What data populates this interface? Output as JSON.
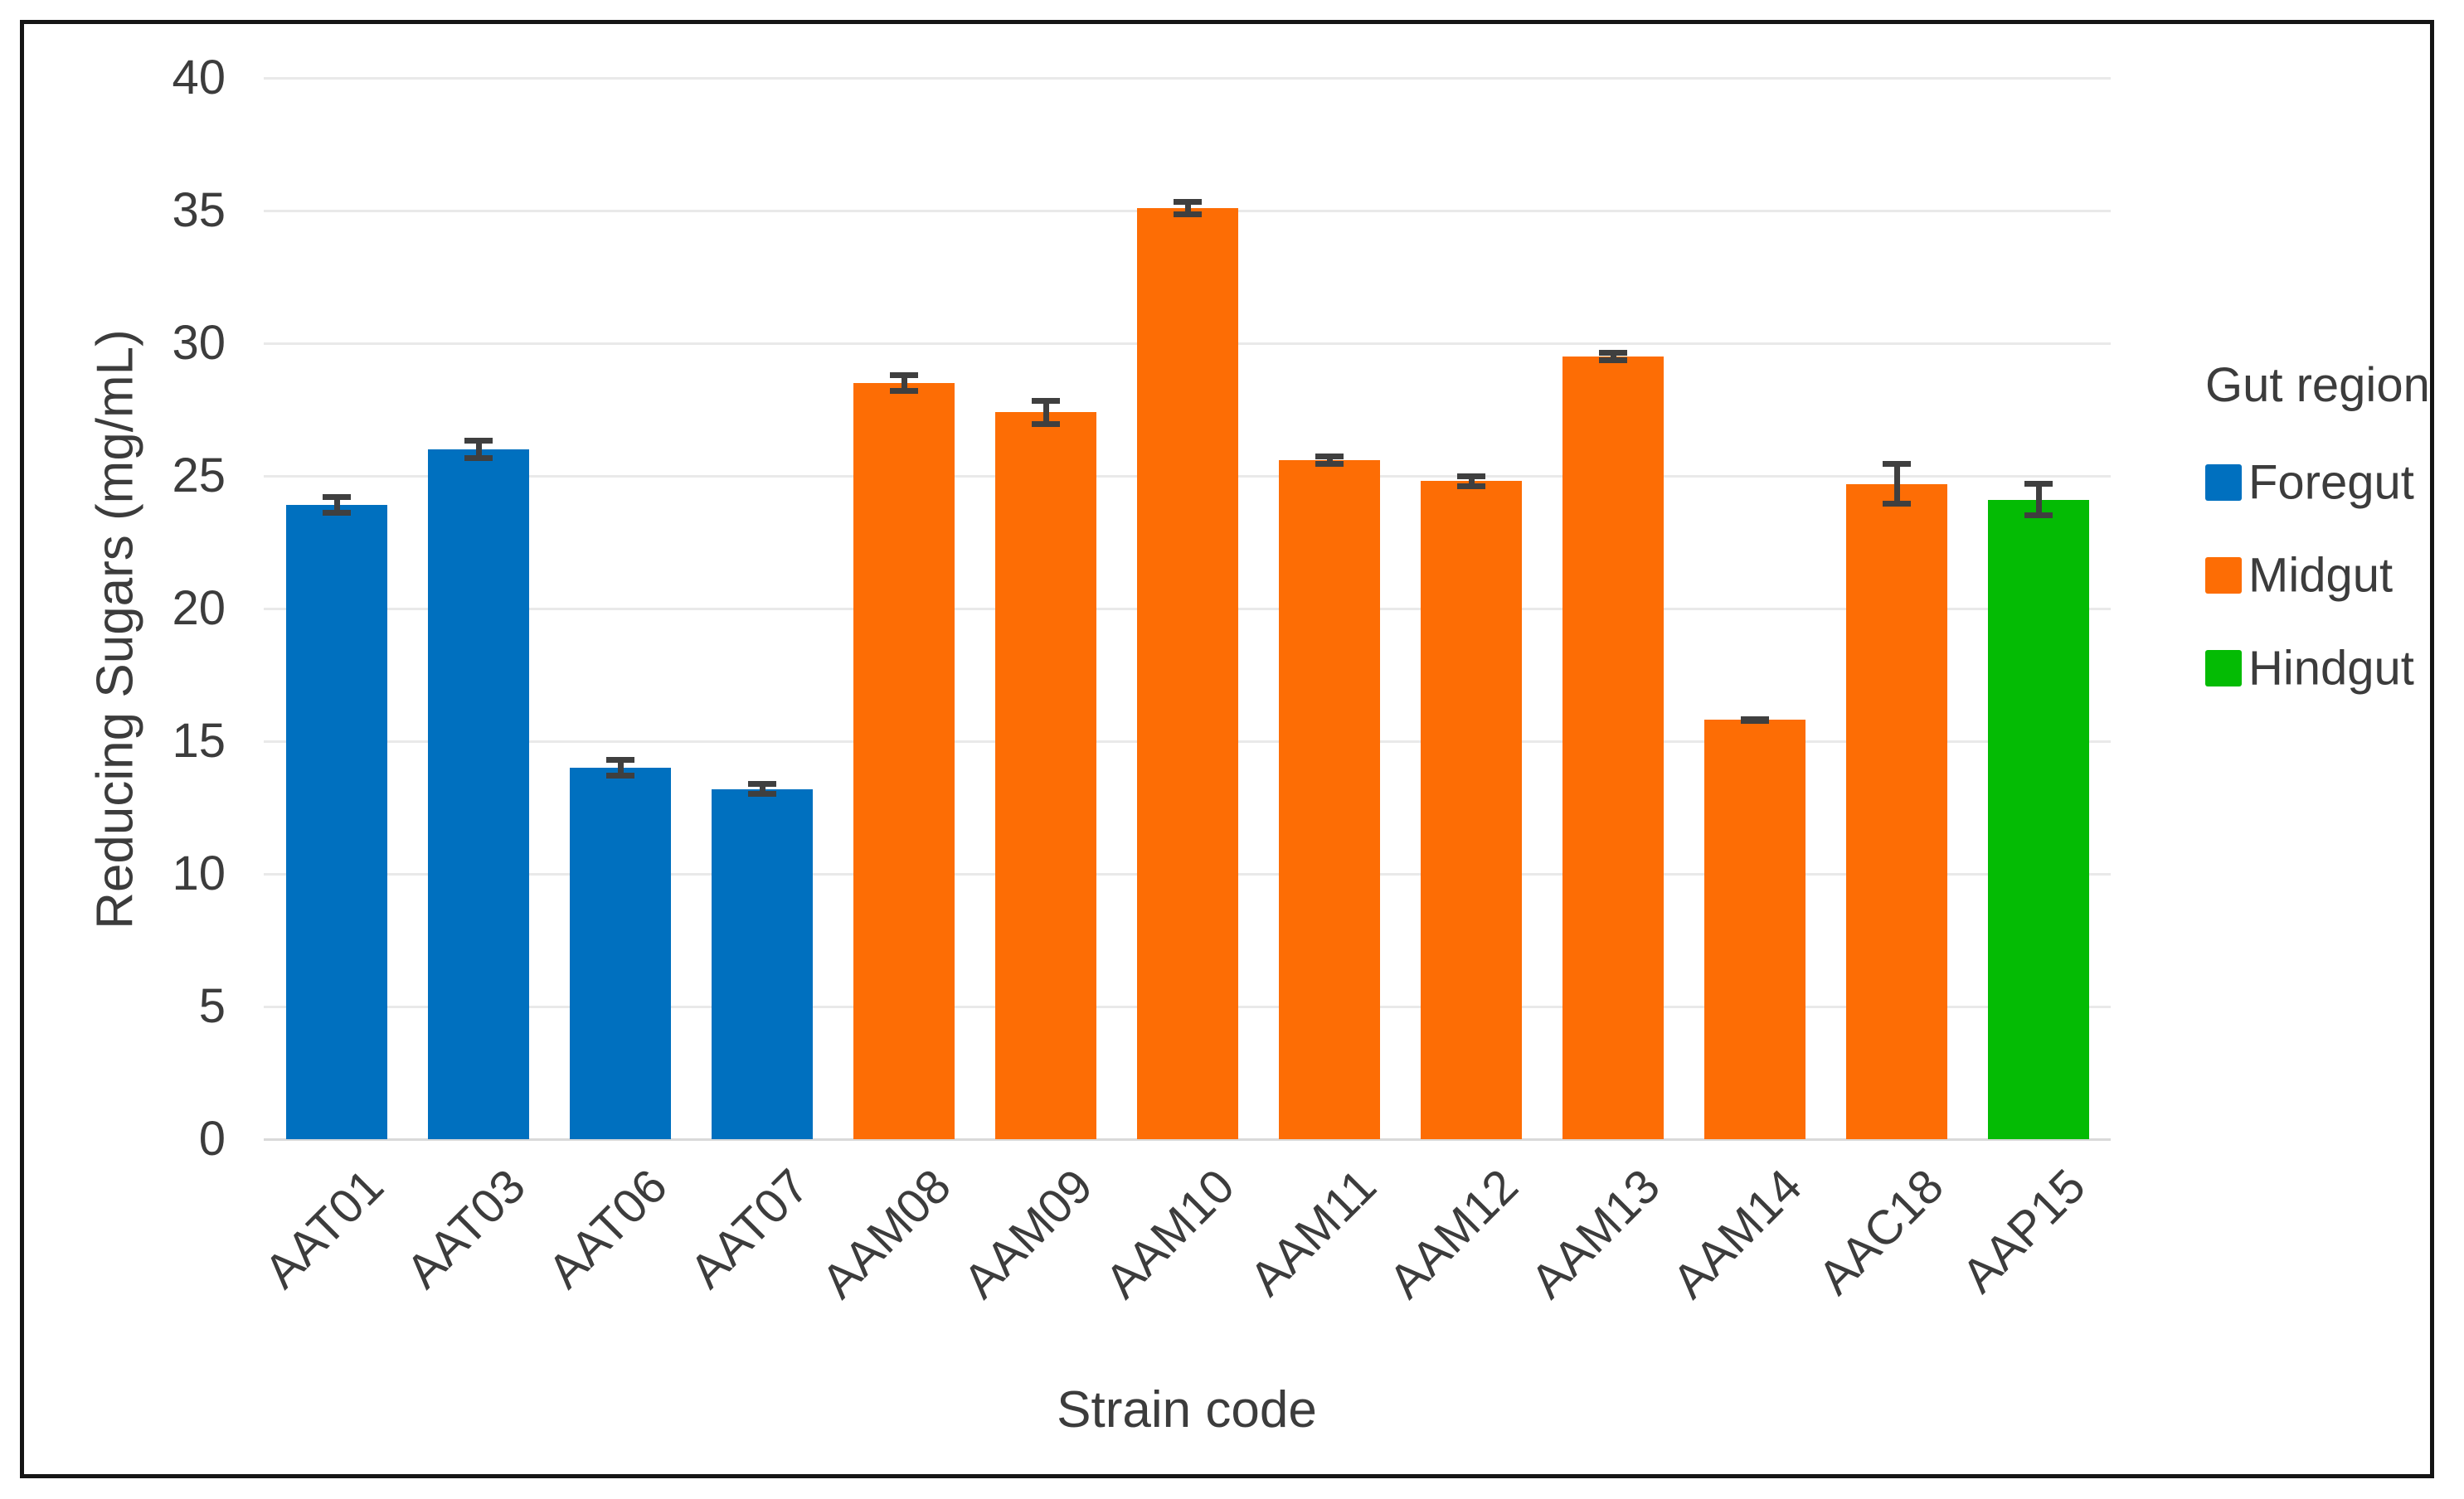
{
  "figure": {
    "background_color": "#ffffff",
    "border_color": "#151515"
  },
  "chart_data": {
    "type": "bar",
    "title": "",
    "xlabel": "Strain code",
    "ylabel": "Reducing Sugars (mg/mL)",
    "categories": [
      "AAT01",
      "AAT03",
      "AAT06",
      "AAT07",
      "AAM08",
      "AAM09",
      "AAM10",
      "AAM11",
      "AAM12",
      "AAM13",
      "AAM14",
      "AAC18",
      "AAP15"
    ],
    "series": [
      {
        "name": "Reducing Sugars (mg/mL)",
        "values": [
          23.9,
          26.0,
          14.0,
          13.2,
          28.5,
          27.4,
          35.1,
          25.6,
          24.8,
          29.5,
          15.8,
          24.7,
          24.1
        ],
        "errors": [
          0.4,
          0.45,
          0.4,
          0.3,
          0.4,
          0.55,
          0.35,
          0.25,
          0.3,
          0.25,
          0.15,
          0.85,
          0.7
        ]
      }
    ],
    "bar_groups": [
      "Foregut",
      "Foregut",
      "Foregut",
      "Foregut",
      "Midgut",
      "Midgut",
      "Midgut",
      "Midgut",
      "Midgut",
      "Midgut",
      "Midgut",
      "Midgut",
      "Hindgut"
    ],
    "ylim": [
      0,
      40
    ],
    "yticks": [
      0,
      5,
      10,
      15,
      20,
      25,
      30,
      35,
      40
    ],
    "grid": "horizontal",
    "error_bar_color": "#3f3f3f",
    "legend": {
      "title": "Gut region",
      "position": "right",
      "entries": [
        {
          "label": "Foregut",
          "color": "#0070bf"
        },
        {
          "label": "Midgut",
          "color": "#fd6d05"
        },
        {
          "label": "Hindgut",
          "color": "#04bb04"
        }
      ]
    }
  }
}
